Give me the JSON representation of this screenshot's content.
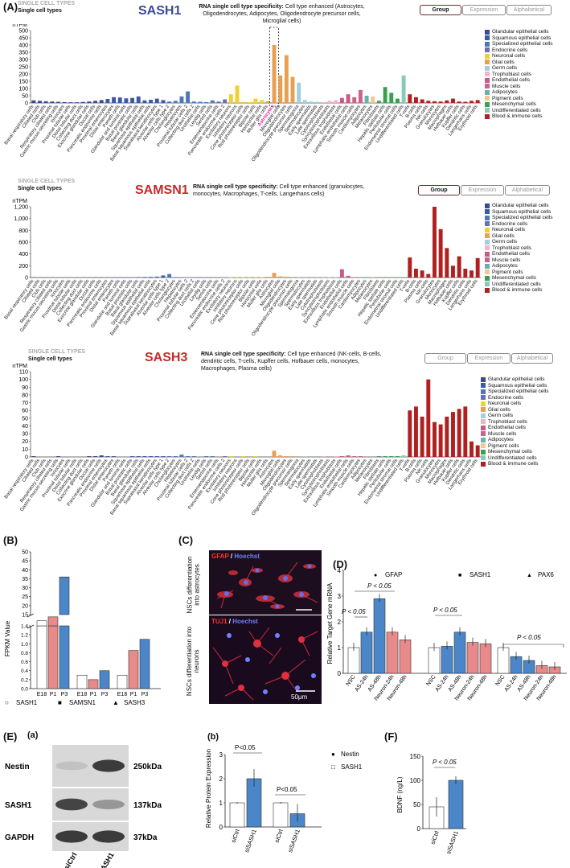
{
  "panelA": {
    "label": "(A)",
    "tabs": [
      "Group",
      "Expression",
      "Alphabetical"
    ],
    "legend_items": [
      {
        "name": "Glandular epithelial cells",
        "color": "#3b4a8c"
      },
      {
        "name": "Squamous epithelial cells",
        "color": "#3a5aa8"
      },
      {
        "name": "Specialized epithelial cells",
        "color": "#4a78b8"
      },
      {
        "name": "Endocrine cells",
        "color": "#6a6fb5"
      },
      {
        "name": "Neuronal cells",
        "color": "#f0d030"
      },
      {
        "name": "Glial cells",
        "color": "#e8a050"
      },
      {
        "name": "Germ cells",
        "color": "#9ed0e0"
      },
      {
        "name": "Trophoblast cells",
        "color": "#f4b4c8"
      },
      {
        "name": "Endothelial cells",
        "color": "#c85a8a"
      },
      {
        "name": "Muscle cells",
        "color": "#d0608a"
      },
      {
        "name": "Adipocytes",
        "color": "#6ab0b0"
      },
      {
        "name": "Pigment cells",
        "color": "#f0c890"
      },
      {
        "name": "Mesenchymal cells",
        "color": "#3aa050"
      },
      {
        "name": "Undifferentiated cells",
        "color": "#8cc8b8"
      },
      {
        "name": "Blood & immune cells",
        "color": "#b02020"
      }
    ],
    "cell_types": [
      "Basal respiratory cells",
      "Ciliated cells",
      "Club cells",
      "Respiratory ciliated cells",
      "Gastric mucus-secreting cells",
      "Ionocytes",
      "Proximal tubular cells",
      "Distal tubular cells",
      "Collecting duct cells",
      "Exocrine glandular cells",
      "Ductal cells",
      "Pancreatic endocrine cells",
      "Proximal enterocytes",
      "Distal enterocytes",
      "Paneth cells",
      "Glandular and luminal cells",
      "Basal prostatic cells",
      "Basal glandular cells",
      "Squamous epithelial cells",
      "Basal squamous epithelial cells",
      "Suprabasal keratinocytes",
      "Alveolar cells type 1",
      "Alveolar cells type 2",
      "Cholangiocytes",
      "Hepatocytes",
      "Proximal tubular cells 2",
      "Collecting duct cells 2",
      "Urothelial cells",
      "Leydig cells",
      "Sertoli cells",
      "Enteroendocrine cells",
      "Pancreatic endocrine cells 2",
      "Excitatory neurons",
      "Inhibitory neurons",
      "Cone photoreceptor cells",
      "Rod photoreceptor cells",
      "Bipolar cells",
      "Horizontal cells",
      "Muller glia cells",
      "Astrocytes",
      "Microglial cells",
      "Oligodendrocytes",
      "Oligodendrocyte precursor cells",
      "Spermatogonia",
      "Spermatocytes",
      "Early spermatids",
      "Late spermatids",
      "Cytotrophoblasts",
      "Syncytiotrophoblasts",
      "Extravillous trophoblasts",
      "Endothelial cells",
      "Lymphatic endothelial cells",
      "Smooth muscle cells",
      "Cardiomyocytes",
      "Adipocytes",
      "Melanocytes",
      "Fibroblasts",
      "Hepatic stellate cells",
      "Peritubular cells",
      "Endometrial stromal cells",
      "Undifferentiated cells",
      "T-cells",
      "B-cells",
      "Plasma cells",
      "NK-cells",
      "Granulocytes",
      "Monocytes",
      "Macrophages",
      "Hofbauer cells",
      "Kupffer cells",
      "Dendritic cells",
      "Langerhans cells",
      "Erythroid cells"
    ],
    "charts": [
      {
        "gene": "SASH1",
        "gene_color": "#3a4a9a",
        "header_gray": "SINGLE CELL TYPES",
        "header_bold": "Single cell types",
        "spec_label": "RNA single cell type specificity:",
        "spec_text": "Cell type enhanced (Astrocytes, Oligodendrocytes, Adipocytes, Oligodendrocyte precursor cells, Microglial cells)",
        "y_unit": "nTPM",
        "yticks": [
          "0",
          "50",
          "100",
          "150",
          "200",
          "250",
          "300",
          "350",
          "400",
          "450",
          "500"
        ],
        "ymax": 500,
        "highlight": "Astrocytes",
        "values": [
          18,
          15,
          12,
          10,
          8,
          6,
          5,
          5,
          7,
          10,
          15,
          20,
          28,
          40,
          38,
          32,
          35,
          45,
          18,
          22,
          30,
          20,
          10,
          15,
          45,
          80,
          10,
          8,
          6,
          18,
          10,
          25,
          60,
          120,
          8,
          6,
          30,
          20,
          12,
          400,
          190,
          330,
          180,
          140,
          20,
          10,
          8,
          5,
          15,
          20,
          35,
          60,
          40,
          90,
          50,
          45,
          15,
          110,
          70,
          30,
          190,
          60,
          40,
          25,
          15,
          12,
          10,
          18,
          30,
          10,
          8,
          15,
          20
        ],
        "chart_data": {
          "type": "bar",
          "ylabel": "nTPM",
          "ylim": [
            0,
            500
          ],
          "highlight": "Astrocytes"
        }
      },
      {
        "gene": "SAMSN1",
        "gene_color": "#c82a2a",
        "header_gray": "SINGLE CELL TYPES",
        "header_bold": "Single cell types",
        "spec_label": "RNA single cell type specificity:",
        "spec_text": "Cell type enhanced (granulocytes, monocytes, Macrophages, T-cells, Langerhans cells)",
        "y_unit": "nTPM",
        "yticks": [
          "0",
          "200",
          "400",
          "600",
          "800",
          "1,000",
          "1,200"
        ],
        "ymax": 1200,
        "values": [
          5,
          4,
          3,
          3,
          2,
          2,
          2,
          2,
          3,
          3,
          4,
          4,
          5,
          6,
          5,
          5,
          6,
          8,
          10,
          12,
          15,
          35,
          60,
          8,
          6,
          5,
          5,
          6,
          4,
          4,
          5,
          5,
          8,
          10,
          6,
          4,
          10,
          6,
          12,
          80,
          20,
          15,
          10,
          4,
          3,
          3,
          3,
          4,
          5,
          5,
          140,
          30,
          8,
          5,
          10,
          4,
          5,
          8,
          4,
          5,
          12,
          340,
          150,
          120,
          60,
          1200,
          820,
          500,
          200,
          360,
          150,
          120,
          330
        ],
        "chart_data": {
          "type": "bar",
          "ylabel": "nTPM",
          "ylim": [
            0,
            1200
          ]
        }
      },
      {
        "gene": "SASH3",
        "gene_color": "#c82a2a",
        "header_gray": "SINGLE CELL TYPES",
        "header_bold": "Single cell types",
        "spec_label": "RNA single cell type specificity:",
        "spec_text": "Cell type enhanced (NK-cells, B-cells, dendritic cells, T-cells, Kupffer cells, Hofbauer cells, monocytes, Macrophages, Plasma cells)",
        "y_unit": "nTPM",
        "yticks": [
          "0",
          "10",
          "20",
          "30",
          "40",
          "50",
          "60",
          "70",
          "80",
          "90",
          "100",
          "110"
        ],
        "ymax": 110,
        "values": [
          1,
          0,
          0,
          0,
          1,
          0,
          0,
          0,
          0,
          1,
          1,
          2,
          1,
          1,
          0,
          0,
          1,
          1,
          1,
          1,
          1,
          1,
          1,
          1,
          3,
          1,
          1,
          0,
          1,
          1,
          0,
          1,
          1,
          0,
          1,
          0,
          1,
          0,
          0,
          8,
          2,
          1,
          1,
          0,
          1,
          0,
          0,
          1,
          0,
          1,
          1,
          2,
          1,
          1,
          0,
          0,
          1,
          1,
          1,
          1,
          2,
          60,
          65,
          52,
          100,
          45,
          42,
          52,
          58,
          62,
          65,
          20,
          15
        ],
        "chart_data": {
          "type": "bar",
          "ylabel": "nTPM",
          "ylim": [
            0,
            110
          ]
        }
      }
    ]
  },
  "panelB": {
    "label": "(B)",
    "ylabel": "FPKM Value",
    "yticks_top": [
      "15",
      "20",
      "25",
      "30",
      "35",
      "40",
      "45",
      "50"
    ],
    "yticks_bottom": [
      "0.0",
      "0.2",
      "0.4",
      "0.6",
      "0.8",
      "1.0",
      "1.2",
      "1.4"
    ],
    "groups": [
      "E18",
      "P1",
      "P3"
    ],
    "legend": [
      "SASH1",
      "SAMSN1",
      "SASH3"
    ],
    "chart_data": {
      "type": "bar",
      "categories": [
        "E18",
        "P1",
        "P3"
      ],
      "series": [
        {
          "name": "SASH1",
          "values": [
            5.5,
            11.5,
            36
          ]
        },
        {
          "name": "SAMSN1",
          "values": [
            0.3,
            0.2,
            0.4
          ]
        },
        {
          "name": "SASH3",
          "values": [
            0.3,
            0.85,
            1.1
          ]
        }
      ]
    }
  },
  "panelC": {
    "label": "(C)",
    "top_side": "NSCs differentiation into astrocytes",
    "bottom_side": "NSCs differentiation into neurons",
    "top_stain_a": "GFAP",
    "top_stain_b": "Hoechst",
    "bottom_stain_a": "TUJ1",
    "bottom_stain_b": "Hoechst",
    "slash": "/",
    "scale": "50μm"
  },
  "panelD": {
    "label": "(D)",
    "ylabel": "Relative Target Gene mRNA",
    "yticks": [
      "0",
      "1",
      "2",
      "3",
      "4"
    ],
    "legend": [
      "GFAP",
      "SASH1",
      "PAX6"
    ],
    "categories": [
      "NSC",
      "AS-24h",
      "AS-48h",
      "Neuron-24h",
      "Neuron-48h"
    ],
    "sig": "P < 0.05",
    "chart_data": {
      "type": "bar",
      "categories": [
        "NSC",
        "AS-24h",
        "AS-48h",
        "Neuron-24h",
        "Neuron-48h"
      ],
      "series": [
        {
          "name": "GFAP",
          "values": [
            1.0,
            1.6,
            2.9,
            1.6,
            1.3
          ]
        },
        {
          "name": "SASH1",
          "values": [
            1.0,
            1.05,
            1.6,
            1.2,
            1.15
          ]
        },
        {
          "name": "PAX6",
          "values": [
            1.0,
            0.65,
            0.5,
            0.3,
            0.25
          ]
        }
      ]
    }
  },
  "panelE": {
    "label": "(E)",
    "sub_a": "(a)",
    "sub_b": "(b)",
    "blots": [
      {
        "name": "Nestin",
        "kda": "250kDa"
      },
      {
        "name": "SASH1",
        "kda": "137kDa"
      },
      {
        "name": "GAPDH",
        "kda": "37kDa"
      }
    ],
    "lanes": [
      "siCtrl",
      "siSASH1"
    ],
    "ylabel": "Relative  Protein Expression",
    "yticks": [
      "0",
      "1",
      "2",
      "3"
    ],
    "legend": [
      "Nestin",
      "SASH1"
    ],
    "sig": "P<0.05",
    "chart_data": {
      "type": "bar",
      "categories": [
        "siCtrl",
        "siSASH1"
      ],
      "series": [
        {
          "name": "Nestin",
          "values": [
            1.0,
            2.0
          ]
        },
        {
          "name": "SASH1",
          "values": [
            1.0,
            0.55
          ]
        }
      ]
    }
  },
  "panelF": {
    "label": "(F)",
    "ylabel": "BDNF (ng/L)",
    "yticks": [
      "0",
      "50",
      "100",
      "150"
    ],
    "categories": [
      "siCtrl",
      "siSASH1"
    ],
    "sig": "P < 0.05",
    "chart_data": {
      "type": "bar",
      "categories": [
        "siCtrl",
        "siSASH1"
      ],
      "values": [
        45,
        100
      ]
    }
  }
}
